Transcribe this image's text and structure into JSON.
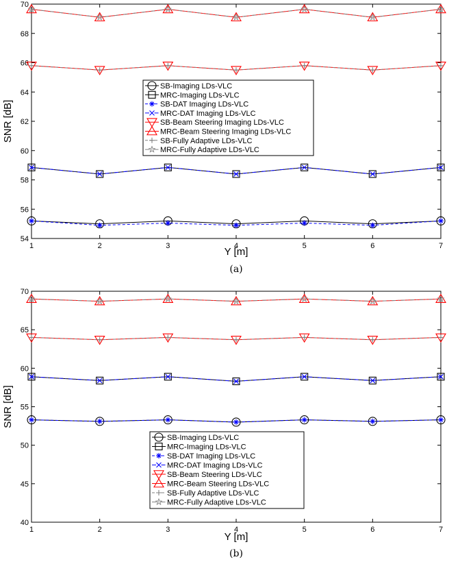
{
  "chart_data": [
    {
      "type": "line",
      "caption": "(a)",
      "xlabel": "Y [m]",
      "ylabel": "SNR [dB]",
      "xlim": [
        1,
        7
      ],
      "ylim": [
        54,
        70
      ],
      "xticks": [
        "1",
        "2",
        "3",
        "4",
        "5",
        "6",
        "7"
      ],
      "yticks": [
        "54",
        "56",
        "58",
        "60",
        "62",
        "64",
        "66",
        "68",
        "70"
      ],
      "x": [
        1,
        2,
        3,
        4,
        5,
        6,
        7
      ],
      "legend_position": "center",
      "series": [
        {
          "name": "SB-Imaging LDs-VLC",
          "values": [
            55.2,
            55.0,
            55.2,
            55.0,
            55.2,
            55.0,
            55.2
          ],
          "color": "#000000",
          "marker": "circle",
          "dash": "solid"
        },
        {
          "name": "MRC-Imaging LDs-VLC",
          "values": [
            58.85,
            58.4,
            58.85,
            58.4,
            58.85,
            58.4,
            58.85
          ],
          "color": "#000000",
          "marker": "square",
          "dash": "solid"
        },
        {
          "name": "SB-DAT Imaging LDs-VLC",
          "values": [
            55.2,
            54.9,
            55.05,
            54.9,
            55.05,
            54.9,
            55.2
          ],
          "color": "#0000ff",
          "marker": "asterisk",
          "dash": "dash"
        },
        {
          "name": "MRC-DAT Imaging LDs-VLC",
          "values": [
            58.85,
            58.4,
            58.85,
            58.4,
            58.85,
            58.4,
            58.85
          ],
          "color": "#0000ff",
          "marker": "x",
          "dash": "dashdot"
        },
        {
          "name": "SB-Beam Steering Imaging LDs-VLC",
          "values": [
            65.8,
            65.5,
            65.8,
            65.5,
            65.8,
            65.5,
            65.8
          ],
          "color": "#ff0000",
          "marker": "triangle-down",
          "dash": "solid"
        },
        {
          "name": "MRC-Beam Steering Imaging LDs-VLC",
          "values": [
            69.65,
            69.1,
            69.65,
            69.1,
            69.65,
            69.1,
            69.65
          ],
          "color": "#ff0000",
          "marker": "triangle-up",
          "dash": "solid"
        },
        {
          "name": "SB-Fully Adaptive LDs-VLC",
          "values": [
            65.8,
            65.5,
            65.8,
            65.5,
            65.8,
            65.5,
            65.8
          ],
          "color": "#808080",
          "marker": "plus",
          "dash": "dash"
        },
        {
          "name": "MRC-Fully Adaptive LDs-VLC",
          "values": [
            69.65,
            69.1,
            69.65,
            69.1,
            69.65,
            69.1,
            69.65
          ],
          "color": "#808080",
          "marker": "star",
          "dash": "dashdot"
        }
      ]
    },
    {
      "type": "line",
      "caption": "(b)",
      "xlabel": "Y [m]",
      "ylabel": "SNR [dB]",
      "xlim": [
        1,
        7
      ],
      "ylim": [
        40,
        70
      ],
      "xticks": [
        "1",
        "2",
        "3",
        "4",
        "5",
        "6",
        "7"
      ],
      "yticks": [
        "40",
        "45",
        "50",
        "55",
        "60",
        "65",
        "70"
      ],
      "x": [
        1,
        2,
        3,
        4,
        5,
        6,
        7
      ],
      "legend_position": "bottom-center",
      "series": [
        {
          "name": "SB-Imaging LDs-VLC",
          "values": [
            53.3,
            53.1,
            53.3,
            53.0,
            53.3,
            53.1,
            53.3
          ],
          "color": "#000000",
          "marker": "circle",
          "dash": "solid"
        },
        {
          "name": "MRC-Imaging LDs-VLC",
          "values": [
            58.9,
            58.4,
            58.9,
            58.3,
            58.9,
            58.4,
            58.9
          ],
          "color": "#000000",
          "marker": "square",
          "dash": "solid"
        },
        {
          "name": "SB-DAT Imaging LDs-VLC",
          "values": [
            53.3,
            53.1,
            53.3,
            53.0,
            53.3,
            53.1,
            53.3
          ],
          "color": "#0000ff",
          "marker": "asterisk",
          "dash": "dash"
        },
        {
          "name": "MRC-DAT Imaging LDs-VLC",
          "values": [
            58.9,
            58.4,
            58.9,
            58.3,
            58.9,
            58.4,
            58.9
          ],
          "color": "#0000ff",
          "marker": "x",
          "dash": "dashdot"
        },
        {
          "name": "SB-Beam Steering LDs-VLC",
          "values": [
            64.0,
            63.7,
            64.0,
            63.7,
            64.0,
            63.7,
            64.0
          ],
          "color": "#ff0000",
          "marker": "triangle-down",
          "dash": "solid"
        },
        {
          "name": "MRC-Beam Steering LDs-VLC",
          "values": [
            69.0,
            68.7,
            69.0,
            68.7,
            69.0,
            68.7,
            69.0
          ],
          "color": "#ff0000",
          "marker": "triangle-up",
          "dash": "solid"
        },
        {
          "name": "SB-Fully Adaptive LDs-VLC",
          "values": [
            64.0,
            63.7,
            64.0,
            63.7,
            64.0,
            63.7,
            64.0
          ],
          "color": "#808080",
          "marker": "plus",
          "dash": "dash"
        },
        {
          "name": "MRC-Fully Adaptive LDs-VLC",
          "values": [
            69.0,
            68.7,
            69.0,
            68.7,
            69.0,
            68.7,
            69.0
          ],
          "color": "#808080",
          "marker": "star",
          "dash": "dashdot"
        }
      ]
    }
  ]
}
